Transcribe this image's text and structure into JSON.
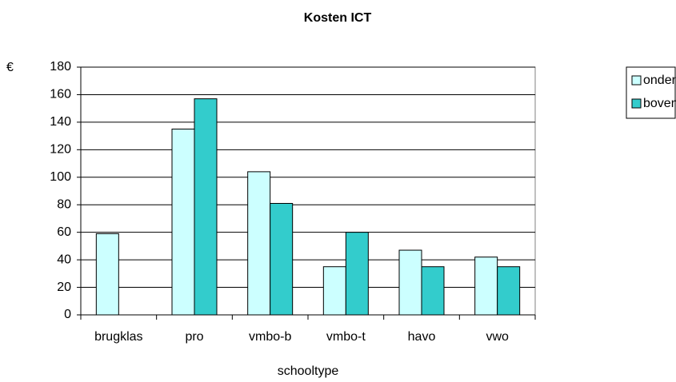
{
  "chart_data": {
    "type": "bar",
    "title": "Kosten ICT",
    "ylabel": "€",
    "xlabel": "schooltype",
    "categories": [
      "brugklas",
      "pro",
      "vmbo-b",
      "vmbo-t",
      "havo",
      "vwo"
    ],
    "series": [
      {
        "name": "onderbouw",
        "color": "#ccffff",
        "values": [
          59,
          135,
          104,
          35,
          47,
          42
        ]
      },
      {
        "name": "bovenbouw",
        "color": "#33cccc",
        "values": [
          null,
          157,
          81,
          60,
          35,
          35
        ]
      }
    ],
    "ylim": [
      0,
      180
    ],
    "yticks": [
      0,
      20,
      40,
      60,
      80,
      100,
      120,
      140,
      160,
      180
    ],
    "grid": true,
    "legend": "right"
  }
}
